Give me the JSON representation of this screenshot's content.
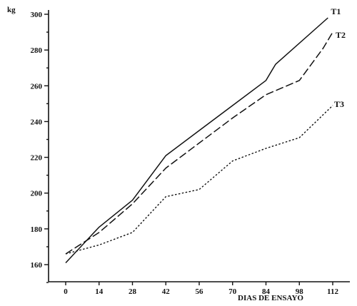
{
  "chart_data": {
    "type": "line",
    "title": "",
    "xlabel": "DIAS DE ENSAYO",
    "ylabel": "kg",
    "xlim": [
      0,
      112
    ],
    "ylim": [
      150,
      300
    ],
    "x_ticks": [
      0,
      14,
      28,
      42,
      56,
      70,
      84,
      98,
      112
    ],
    "y_ticks": [
      160,
      180,
      200,
      220,
      240,
      260,
      280,
      300
    ],
    "series": [
      {
        "name": "T1",
        "line_style": "solid",
        "points": [
          [
            0,
            161
          ],
          [
            14,
            181
          ],
          [
            28,
            196
          ],
          [
            42,
            221
          ],
          [
            56,
            235
          ],
          [
            70,
            249
          ],
          [
            84,
            263
          ],
          [
            88,
            272
          ],
          [
            110,
            298
          ]
        ]
      },
      {
        "name": "T2",
        "line_style": "dashed",
        "points": [
          [
            0,
            166
          ],
          [
            14,
            178
          ],
          [
            28,
            194
          ],
          [
            42,
            214
          ],
          [
            56,
            228
          ],
          [
            70,
            242
          ],
          [
            84,
            255
          ],
          [
            98,
            263
          ],
          [
            108,
            281
          ],
          [
            112,
            290
          ]
        ]
      },
      {
        "name": "T3",
        "line_style": "dotted",
        "points": [
          [
            0,
            166
          ],
          [
            14,
            171
          ],
          [
            28,
            178
          ],
          [
            42,
            198
          ],
          [
            56,
            202
          ],
          [
            70,
            218
          ],
          [
            84,
            225
          ],
          [
            98,
            231
          ],
          [
            112,
            249
          ]
        ]
      }
    ],
    "grid": false,
    "legend": "inline labels at line ends"
  }
}
